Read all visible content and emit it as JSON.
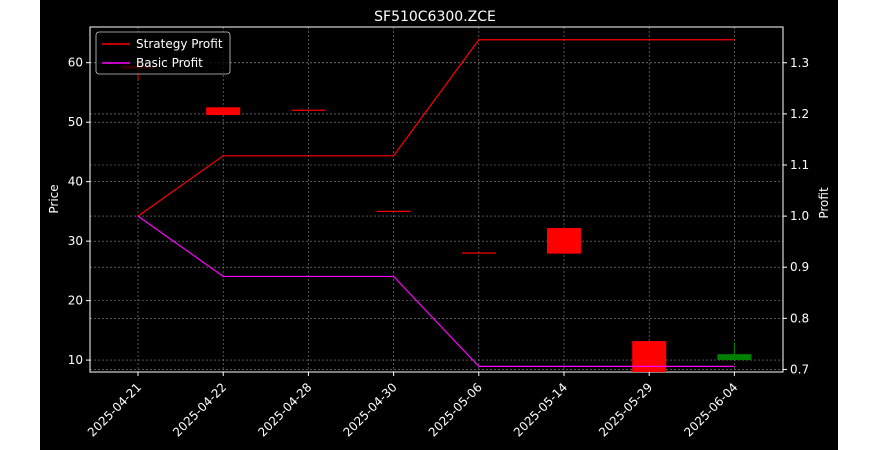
{
  "chart_data": {
    "type": "candlestick+line",
    "title": "SF510C6300.ZCE",
    "xlabel": "",
    "ylabel_left": "Price",
    "ylabel_right": "Profit",
    "categories": [
      "2025-04-21",
      "2025-04-22",
      "2025-04-28",
      "2025-04-30",
      "2025-05-06",
      "2025-05-14",
      "2025-05-29",
      "2025-06-04"
    ],
    "ylim_left": [
      8,
      66
    ],
    "yticks_left": [
      10,
      20,
      30,
      40,
      50,
      60
    ],
    "ylim_right": [
      0.695,
      1.37
    ],
    "yticks_right": [
      0.7,
      0.8,
      0.9,
      1.0,
      1.1,
      1.2,
      1.3
    ],
    "grid": true,
    "legend_position": "top-left",
    "candles": [
      {
        "date": "2025-04-21",
        "open": 59.5,
        "close": 59.0,
        "high": 59.5,
        "low": 57.0
      },
      {
        "date": "2025-04-22",
        "open": 52.5,
        "close": 51.2,
        "high": 52.5,
        "low": 51.2
      },
      {
        "date": "2025-04-28",
        "open": 52.1,
        "close": 51.9,
        "high": 52.1,
        "low": 51.9
      },
      {
        "date": "2025-04-30",
        "open": 35.1,
        "close": 34.9,
        "high": 35.1,
        "low": 34.9
      },
      {
        "date": "2025-05-06",
        "open": 28.1,
        "close": 27.9,
        "high": 28.1,
        "low": 27.9
      },
      {
        "date": "2025-05-14",
        "open": 32.2,
        "close": 27.9,
        "high": 32.2,
        "low": 27.9
      },
      {
        "date": "2025-05-29",
        "open": 13.2,
        "close": 8.0,
        "high": 13.2,
        "low": 8.0
      },
      {
        "date": "2025-06-04",
        "open": 10.0,
        "close": 11.0,
        "high": 13.0,
        "low": 10.0
      }
    ],
    "series": [
      {
        "name": "Strategy Profit",
        "color": "#ff0000",
        "values": [
          1.0,
          1.118,
          1.118,
          1.118,
          1.345,
          1.345,
          1.345,
          1.345
        ]
      },
      {
        "name": "Basic Profit",
        "color": "#ff00ff",
        "values": [
          1.0,
          0.882,
          0.882,
          0.882,
          0.706,
          0.706,
          0.706,
          0.706
        ]
      }
    ],
    "up_color": "#008000",
    "down_color": "#ff0000"
  }
}
